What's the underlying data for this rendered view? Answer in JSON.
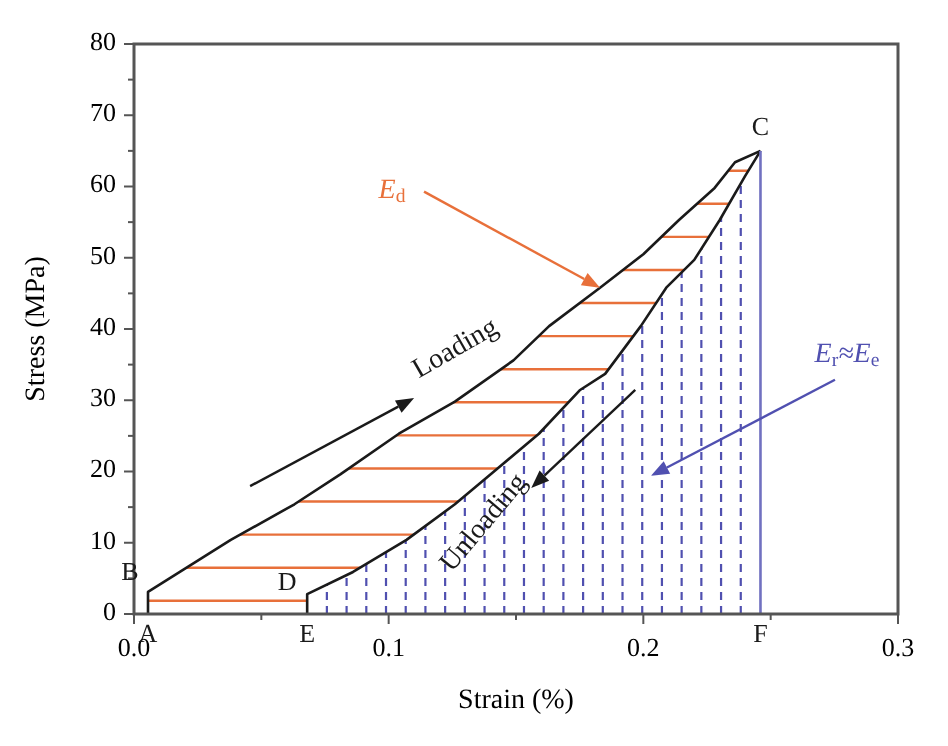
{
  "chart_data": {
    "type": "line",
    "xlabel": "Strain (%)",
    "ylabel": "Stress (MPa)",
    "xlim": [
      0,
      0.3
    ],
    "ylim": [
      0,
      80
    ],
    "xticks": [
      {
        "value": 0,
        "label": "0.0"
      },
      0.1,
      0.2,
      0.3
    ],
    "yticks": [
      0,
      10,
      20,
      30,
      40,
      50,
      60,
      70,
      80
    ],
    "grid": false,
    "marker": "none",
    "line_style": "solid",
    "series": [
      {
        "type": "area",
        "color": "#1a1a1a",
        "x": [
          0.0055,
          0.0055,
          0.018,
          0.038,
          0.063,
          0.081,
          0.104,
          0.126,
          0.149,
          0.163,
          0.183,
          0.2,
          0.214,
          0.228,
          0.236,
          0.246
        ],
        "values": [
          0,
          3.1,
          5.9,
          10.4,
          15.4,
          19.6,
          25.3,
          29.8,
          35.6,
          40.4,
          45.8,
          50.5,
          55.3,
          59.8,
          63.4,
          65
        ]
      },
      {
        "type": "area",
        "color": "#1a1a1a",
        "x": [
          0.246,
          0.24,
          0.23,
          0.22,
          0.209,
          0.199,
          0.185,
          0.175,
          0.159,
          0.141,
          0.126,
          0.107,
          0.086,
          0.068,
          0.068
        ],
        "values": [
          65,
          61.5,
          55.3,
          49.7,
          45.8,
          40.4,
          33.7,
          31.4,
          25.3,
          19.9,
          15.4,
          10.4,
          5.9,
          2.8,
          0
        ]
      },
      {
        "color": "#7070c0",
        "x": [
          0.246,
          0.246
        ],
        "values": [
          0,
          65
        ]
      }
    ],
    "annotations": [
      {
        "text": "A",
        "x": 0.0055,
        "y": 0
      },
      {
        "text": "B",
        "x": 0.0055,
        "y": 3.1
      },
      {
        "text": "C",
        "x": 0.246,
        "y": 65
      },
      {
        "text": "D",
        "x": 0.068,
        "y": 2.8
      },
      {
        "text": "E",
        "x": 0.068,
        "y": 0
      },
      {
        "text": "F",
        "x": 0.246,
        "y": 0
      },
      "Loading",
      "Unloading",
      {
        "text": "E$_{d}$",
        "x": 0.183,
        "y": 45.8
      },
      "E$_{r}$≈E$_{e}$"
    ]
  }
}
